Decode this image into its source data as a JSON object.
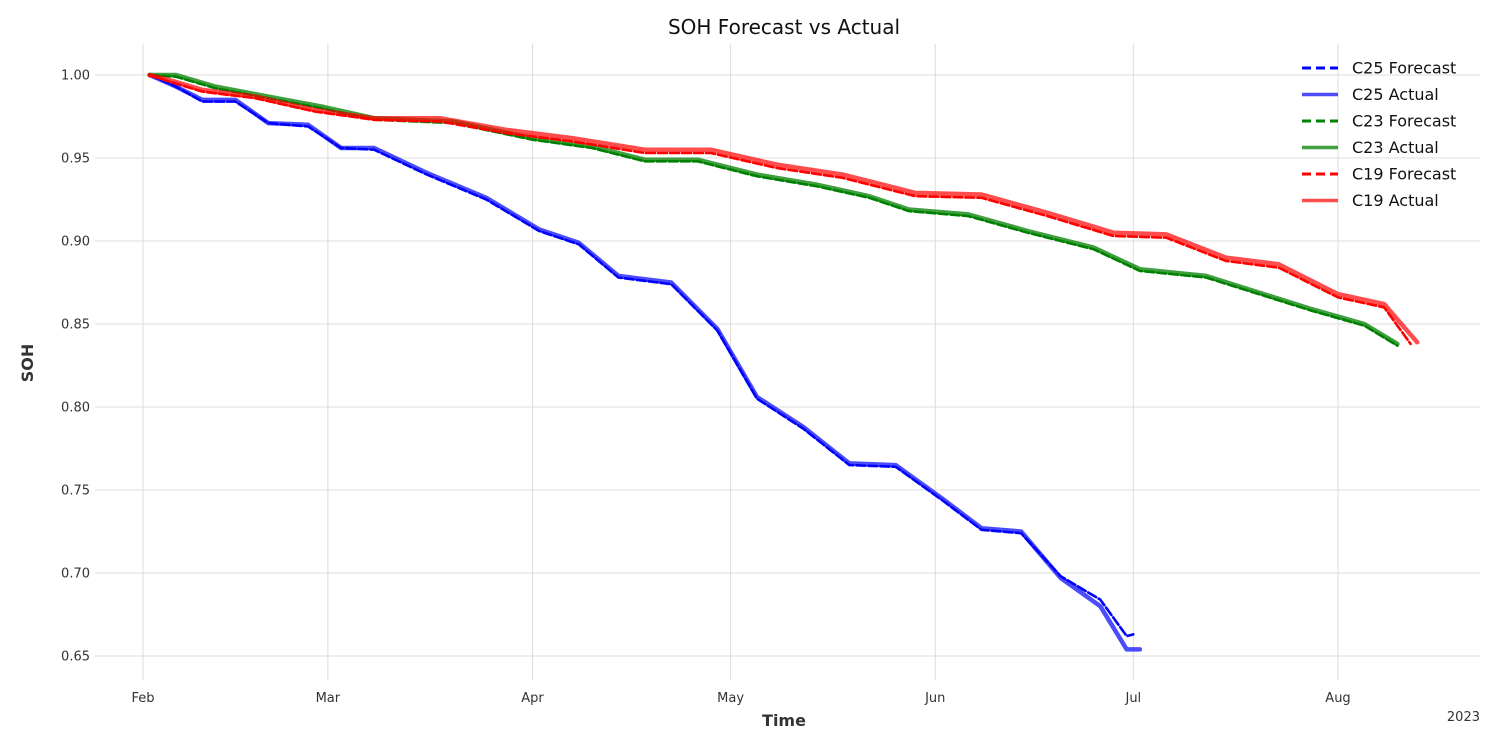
{
  "chart_data": {
    "type": "line",
    "title": "SOH Forecast vs Actual",
    "xlabel": "Time",
    "ylabel": "SOH",
    "year_label": "2023",
    "x_type": "date",
    "xlim": [
      "2023-02-01",
      "2023-08-23"
    ],
    "ylim": [
      0.635,
      1.018
    ],
    "grid": true,
    "legend_position": "top-right",
    "x_ticks": [
      {
        "date": "2023-02-01",
        "label": "Feb"
      },
      {
        "date": "2023-03-01",
        "label": "Mar"
      },
      {
        "date": "2023-04-01",
        "label": "Apr"
      },
      {
        "date": "2023-05-01",
        "label": "May"
      },
      {
        "date": "2023-06-01",
        "label": "Jun"
      },
      {
        "date": "2023-07-01",
        "label": "Jul"
      },
      {
        "date": "2023-08-01",
        "label": "Aug"
      }
    ],
    "y_ticks": [
      {
        "value": 1.0,
        "label": "1.00"
      },
      {
        "value": 0.95,
        "label": "0.95"
      },
      {
        "value": 0.9,
        "label": "0.90"
      },
      {
        "value": 0.85,
        "label": "0.85"
      },
      {
        "value": 0.8,
        "label": "0.80"
      },
      {
        "value": 0.75,
        "label": "0.75"
      },
      {
        "value": 0.7,
        "label": "0.70"
      },
      {
        "value": 0.65,
        "label": "0.65"
      }
    ],
    "series": [
      {
        "name": "C25 Forecast",
        "style": "dashed",
        "color": "#0000ff",
        "opacity": 1,
        "x": [
          "2023-02-02",
          "2023-02-06",
          "2023-02-10",
          "2023-02-15",
          "2023-02-20",
          "2023-02-26",
          "2023-03-03",
          "2023-03-08",
          "2023-03-16",
          "2023-03-25",
          "2023-04-02",
          "2023-04-08",
          "2023-04-14",
          "2023-04-22",
          "2023-04-29",
          "2023-05-05",
          "2023-05-12",
          "2023-05-19",
          "2023-05-26",
          "2023-06-02",
          "2023-06-08",
          "2023-06-14",
          "2023-06-20",
          "2023-06-26",
          "2023-06-30",
          "2023-07-01"
        ],
        "y": [
          1.0,
          0.993,
          0.984,
          0.984,
          0.971,
          0.969,
          0.956,
          0.955,
          0.94,
          0.925,
          0.906,
          0.898,
          0.878,
          0.874,
          0.846,
          0.805,
          0.787,
          0.765,
          0.764,
          0.744,
          0.726,
          0.724,
          0.698,
          0.684,
          0.662,
          0.663
        ]
      },
      {
        "name": "C25 Actual",
        "style": "solid",
        "color": "#0000ff",
        "opacity": 0.7,
        "x": [
          "2023-02-02",
          "2023-02-06",
          "2023-02-10",
          "2023-02-15",
          "2023-02-20",
          "2023-02-26",
          "2023-03-03",
          "2023-03-08",
          "2023-03-16",
          "2023-03-25",
          "2023-04-02",
          "2023-04-08",
          "2023-04-14",
          "2023-04-22",
          "2023-04-29",
          "2023-05-05",
          "2023-05-12",
          "2023-05-19",
          "2023-05-26",
          "2023-06-02",
          "2023-06-08",
          "2023-06-14",
          "2023-06-20",
          "2023-06-26",
          "2023-06-30",
          "2023-07-02"
        ],
        "y": [
          1.0,
          0.993,
          0.985,
          0.985,
          0.971,
          0.97,
          0.956,
          0.956,
          0.941,
          0.926,
          0.907,
          0.899,
          0.879,
          0.875,
          0.847,
          0.806,
          0.788,
          0.766,
          0.765,
          0.745,
          0.727,
          0.725,
          0.697,
          0.68,
          0.654,
          0.654
        ]
      },
      {
        "name": "C23 Forecast",
        "style": "dashed",
        "color": "#008000",
        "opacity": 1,
        "x": [
          "2023-02-02",
          "2023-02-06",
          "2023-02-12",
          "2023-02-20",
          "2023-02-28",
          "2023-03-08",
          "2023-03-20",
          "2023-04-01",
          "2023-04-10",
          "2023-04-18",
          "2023-04-26",
          "2023-05-05",
          "2023-05-14",
          "2023-05-22",
          "2023-05-28",
          "2023-06-06",
          "2023-06-15",
          "2023-06-25",
          "2023-07-02",
          "2023-07-12",
          "2023-07-20",
          "2023-07-28",
          "2023-08-05",
          "2023-08-10"
        ],
        "y": [
          1.0,
          0.999,
          0.992,
          0.986,
          0.98,
          0.973,
          0.971,
          0.961,
          0.956,
          0.948,
          0.948,
          0.939,
          0.933,
          0.926,
          0.918,
          0.915,
          0.905,
          0.895,
          0.882,
          0.878,
          0.868,
          0.858,
          0.849,
          0.837
        ]
      },
      {
        "name": "C23 Actual",
        "style": "solid",
        "color": "#008000",
        "opacity": 0.75,
        "x": [
          "2023-02-02",
          "2023-02-06",
          "2023-02-12",
          "2023-02-20",
          "2023-02-28",
          "2023-03-08",
          "2023-03-20",
          "2023-04-01",
          "2023-04-10",
          "2023-04-18",
          "2023-04-26",
          "2023-05-05",
          "2023-05-14",
          "2023-05-22",
          "2023-05-28",
          "2023-06-06",
          "2023-06-15",
          "2023-06-25",
          "2023-07-02",
          "2023-07-12",
          "2023-07-20",
          "2023-07-28",
          "2023-08-05",
          "2023-08-10"
        ],
        "y": [
          1.0,
          1.0,
          0.993,
          0.987,
          0.981,
          0.974,
          0.972,
          0.962,
          0.957,
          0.949,
          0.949,
          0.94,
          0.934,
          0.927,
          0.919,
          0.916,
          0.906,
          0.896,
          0.883,
          0.879,
          0.869,
          0.859,
          0.85,
          0.838
        ]
      },
      {
        "name": "C19 Forecast",
        "style": "dashed",
        "color": "#ff0000",
        "opacity": 1,
        "x": [
          "2023-02-02",
          "2023-02-05",
          "2023-02-10",
          "2023-02-18",
          "2023-02-27",
          "2023-03-08",
          "2023-03-18",
          "2023-03-28",
          "2023-04-07",
          "2023-04-18",
          "2023-04-28",
          "2023-05-08",
          "2023-05-18",
          "2023-05-29",
          "2023-06-08",
          "2023-06-18",
          "2023-06-28",
          "2023-07-06",
          "2023-07-15",
          "2023-07-23",
          "2023-08-01",
          "2023-08-08",
          "2023-08-12"
        ],
        "y": [
          1.0,
          0.996,
          0.99,
          0.986,
          0.978,
          0.973,
          0.972,
          0.965,
          0.96,
          0.953,
          0.953,
          0.944,
          0.938,
          0.927,
          0.926,
          0.915,
          0.903,
          0.902,
          0.888,
          0.884,
          0.866,
          0.86,
          0.838
        ]
      },
      {
        "name": "C19 Actual",
        "style": "solid",
        "color": "#ff0000",
        "opacity": 0.7,
        "x": [
          "2023-02-02",
          "2023-02-05",
          "2023-02-10",
          "2023-02-18",
          "2023-02-27",
          "2023-03-08",
          "2023-03-18",
          "2023-03-28",
          "2023-04-07",
          "2023-04-18",
          "2023-04-28",
          "2023-05-08",
          "2023-05-18",
          "2023-05-29",
          "2023-06-08",
          "2023-06-18",
          "2023-06-28",
          "2023-07-06",
          "2023-07-15",
          "2023-07-23",
          "2023-08-01",
          "2023-08-08",
          "2023-08-13"
        ],
        "y": [
          1.0,
          0.997,
          0.991,
          0.987,
          0.979,
          0.974,
          0.974,
          0.967,
          0.962,
          0.955,
          0.955,
          0.946,
          0.94,
          0.929,
          0.928,
          0.917,
          0.905,
          0.904,
          0.89,
          0.886,
          0.868,
          0.862,
          0.839
        ]
      }
    ]
  }
}
